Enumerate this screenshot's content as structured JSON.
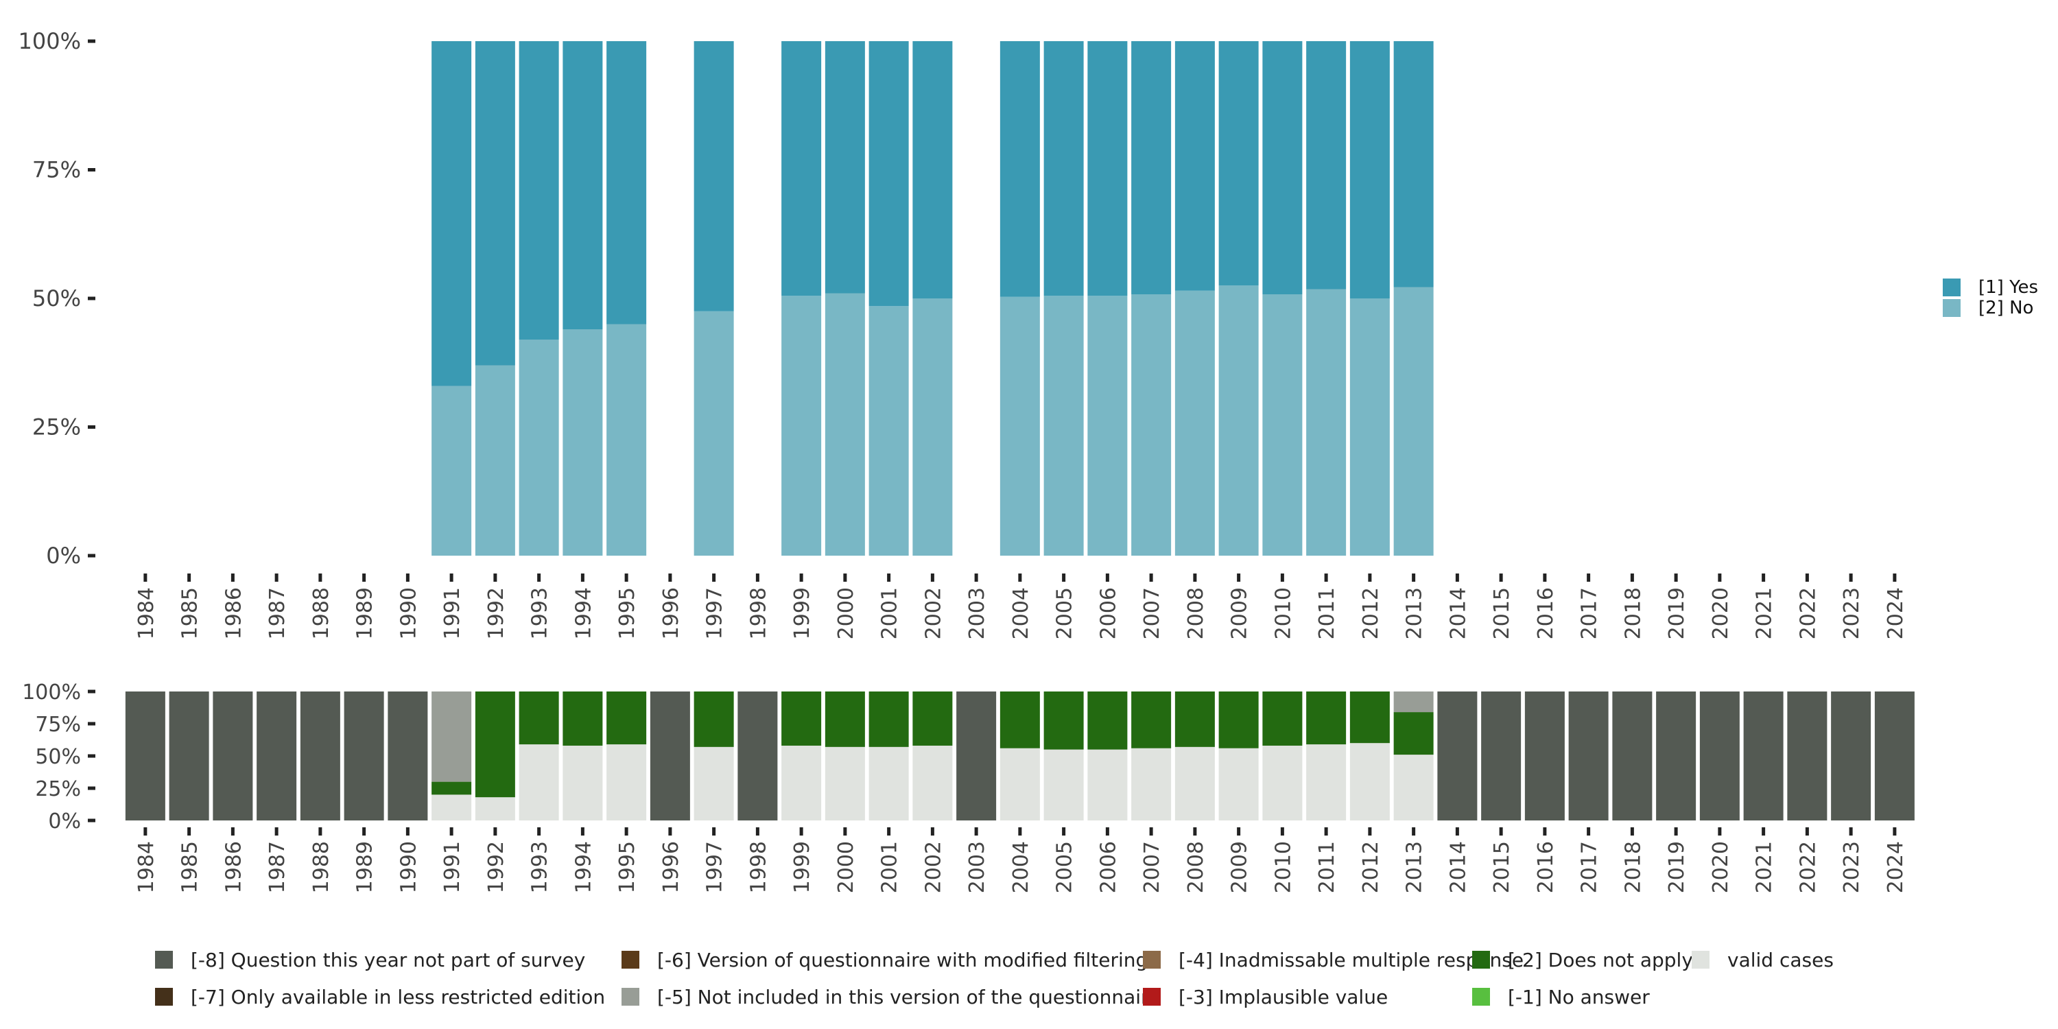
{
  "chart_data": [
    {
      "type": "bar",
      "stacked": true,
      "title": "",
      "xlabel": "",
      "ylabel": "",
      "ylim": [
        0,
        100
      ],
      "yticks": [
        "0%",
        "25%",
        "50%",
        "75%",
        "100%"
      ],
      "categories": [
        "1984",
        "1985",
        "1986",
        "1987",
        "1988",
        "1989",
        "1990",
        "1991",
        "1992",
        "1993",
        "1994",
        "1995",
        "1996",
        "1997",
        "1998",
        "1999",
        "2000",
        "2001",
        "2002",
        "2003",
        "2004",
        "2005",
        "2006",
        "2007",
        "2008",
        "2009",
        "2010",
        "2011",
        "2012",
        "2013",
        "2014",
        "2015",
        "2016",
        "2017",
        "2018",
        "2019",
        "2020",
        "2021",
        "2022",
        "2023",
        "2024"
      ],
      "series": [
        {
          "name": "[2] No",
          "color": "#79b7c5",
          "values": [
            null,
            null,
            null,
            null,
            null,
            null,
            null,
            33,
            37,
            42,
            44,
            45,
            null,
            47.5,
            null,
            50.5,
            51,
            48.5,
            50,
            null,
            50.3,
            50.5,
            50.5,
            50.8,
            51.5,
            52.5,
            50.8,
            51.8,
            50,
            52.2,
            null,
            null,
            null,
            null,
            null,
            null,
            null,
            null,
            null,
            null,
            null
          ]
        },
        {
          "name": "[1] Yes",
          "color": "#3a9ab3",
          "values": [
            null,
            null,
            null,
            null,
            null,
            null,
            null,
            67,
            63,
            58,
            56,
            55,
            null,
            52.5,
            null,
            49.5,
            49,
            51.5,
            50,
            null,
            49.7,
            49.5,
            49.5,
            49.2,
            48.5,
            47.5,
            49.2,
            48.2,
            50,
            47.8,
            null,
            null,
            null,
            null,
            null,
            null,
            null,
            null,
            null,
            null,
            null
          ]
        }
      ],
      "legend": {
        "position": "right",
        "entries": [
          "[1] Yes",
          "[2] No"
        ]
      }
    },
    {
      "type": "bar",
      "stacked": true,
      "title": "",
      "ylim": [
        0,
        100
      ],
      "yticks": [
        "0%",
        "25%",
        "50%",
        "75%",
        "100%"
      ],
      "categories": [
        "1984",
        "1985",
        "1986",
        "1987",
        "1988",
        "1989",
        "1990",
        "1991",
        "1992",
        "1993",
        "1994",
        "1995",
        "1996",
        "1997",
        "1998",
        "1999",
        "2000",
        "2001",
        "2002",
        "2003",
        "2004",
        "2005",
        "2006",
        "2007",
        "2008",
        "2009",
        "2010",
        "2011",
        "2012",
        "2013",
        "2014",
        "2015",
        "2016",
        "2017",
        "2018",
        "2019",
        "2020",
        "2021",
        "2022",
        "2023",
        "2024"
      ],
      "series": [
        {
          "name": "valid cases",
          "color": "#e0e3df",
          "values": [
            0,
            0,
            0,
            0,
            0,
            0,
            0,
            20,
            18,
            59,
            58,
            59,
            0,
            57,
            0,
            58,
            57,
            57,
            58,
            0,
            56,
            55,
            55,
            56,
            57,
            56,
            58,
            59,
            60,
            51,
            0,
            0,
            0,
            0,
            0,
            0,
            0,
            0,
            0,
            0,
            0
          ]
        },
        {
          "name": "[-2] Does not apply",
          "color": "#236a11",
          "values": [
            0,
            0,
            0,
            0,
            0,
            0,
            0,
            10,
            82,
            41,
            42,
            41,
            0,
            43,
            0,
            42,
            43,
            43,
            42,
            0,
            44,
            45,
            45,
            44,
            43,
            44,
            42,
            41,
            40,
            33,
            0,
            0,
            0,
            0,
            0,
            0,
            0,
            0,
            0,
            0,
            0
          ]
        },
        {
          "name": "[-5] Not included in this version of the questionnaire",
          "color": "#989d96",
          "values": [
            0,
            0,
            0,
            0,
            0,
            0,
            0,
            70,
            0,
            0,
            0,
            0,
            0,
            0,
            0,
            0,
            0,
            0,
            0,
            0,
            0,
            0,
            0,
            0,
            0,
            0,
            0,
            0,
            0,
            16,
            0,
            0,
            0,
            0,
            0,
            0,
            0,
            0,
            0,
            0,
            0
          ]
        },
        {
          "name": "[-8] Question this year not part of survey",
          "color": "#545a53",
          "values": [
            100,
            100,
            100,
            100,
            100,
            100,
            100,
            0,
            0,
            0,
            0,
            0,
            100,
            0,
            100,
            0,
            0,
            0,
            0,
            100,
            0,
            0,
            0,
            0,
            0,
            0,
            0,
            0,
            0,
            0,
            100,
            100,
            100,
            100,
            100,
            100,
            100,
            100,
            100,
            100,
            100
          ]
        }
      ],
      "legend": {
        "position": "bottom",
        "rows": [
          [
            {
              "label": "[-8] Question this year not part of survey",
              "color": "#545a53"
            },
            {
              "label": "[-6] Version of questionnaire with modified filtering",
              "color": "#5a3a19"
            },
            {
              "label": "[-4] Inadmissable multiple response",
              "color": "#8c6a48"
            },
            {
              "label": "[-2] Does not apply",
              "color": "#236a11"
            },
            {
              "label": "valid cases",
              "color": "#e0e3df"
            }
          ],
          [
            {
              "label": "[-7] Only available in less restricted edition",
              "color": "#44301a"
            },
            {
              "label": "[-5] Not included in this version of the questionnaire",
              "color": "#989d96"
            },
            {
              "label": "[-3] Implausible value",
              "color": "#b21a1a"
            },
            {
              "label": "[-1] No answer",
              "color": "#58bf3f"
            }
          ]
        ]
      }
    }
  ]
}
